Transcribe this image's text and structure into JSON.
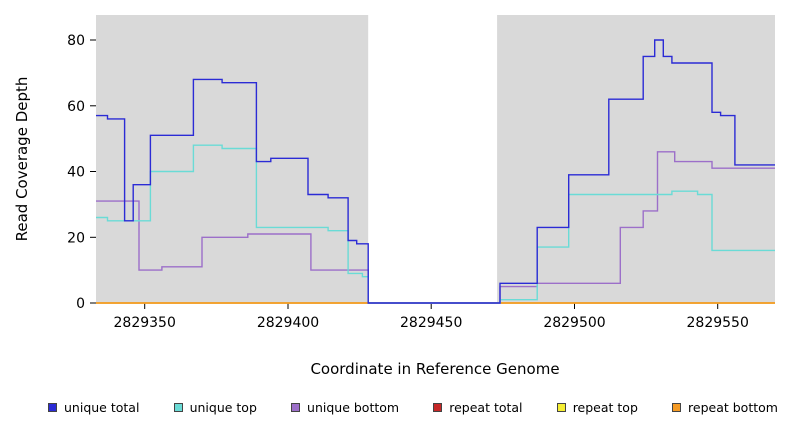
{
  "figure": {
    "background": "#ffffff",
    "plot_background": "#d9d9d9",
    "gap_band_color": "#ffffff"
  },
  "chart_data": {
    "type": "line",
    "step": true,
    "title": "",
    "xlabel": "Coordinate in Reference Genome",
    "ylabel": "Read Coverage Depth",
    "xlim": [
      2829333,
      2829570
    ],
    "ylim": [
      0,
      87
    ],
    "x_ticks": [
      2829350,
      2829400,
      2829450,
      2829500,
      2829550
    ],
    "y_ticks": [
      0,
      20,
      40,
      60,
      80
    ],
    "grid": false,
    "legend_position": "bottom",
    "gap_region": {
      "start": 2829428,
      "end": 2829473
    },
    "series": [
      {
        "name": "unique total",
        "color": "#2b2bd5",
        "points": [
          [
            2829333,
            57
          ],
          [
            2829337,
            56
          ],
          [
            2829343,
            25
          ],
          [
            2829346,
            36
          ],
          [
            2829352,
            51
          ],
          [
            2829367,
            68
          ],
          [
            2829377,
            67
          ],
          [
            2829389,
            43
          ],
          [
            2829394,
            44
          ],
          [
            2829407,
            33
          ],
          [
            2829414,
            32
          ],
          [
            2829421,
            19
          ],
          [
            2829424,
            18
          ],
          [
            2829428,
            0
          ],
          [
            2829474,
            6
          ],
          [
            2829487,
            23
          ],
          [
            2829498,
            39
          ],
          [
            2829512,
            62
          ],
          [
            2829524,
            75
          ],
          [
            2829528,
            80
          ],
          [
            2829531,
            75
          ],
          [
            2829534,
            73
          ],
          [
            2829548,
            58
          ],
          [
            2829551,
            57
          ],
          [
            2829556,
            42
          ]
        ]
      },
      {
        "name": "unique top",
        "color": "#6adbd6",
        "points": [
          [
            2829333,
            26
          ],
          [
            2829337,
            25
          ],
          [
            2829352,
            40
          ],
          [
            2829367,
            48
          ],
          [
            2829377,
            47
          ],
          [
            2829389,
            23
          ],
          [
            2829414,
            22
          ],
          [
            2829421,
            9
          ],
          [
            2829426,
            8
          ],
          [
            2829428,
            0
          ],
          [
            2829474,
            1
          ],
          [
            2829487,
            17
          ],
          [
            2829498,
            33
          ],
          [
            2829534,
            34
          ],
          [
            2829543,
            33
          ],
          [
            2829548,
            16
          ]
        ]
      },
      {
        "name": "unique bottom",
        "color": "#9c6fc9",
        "points": [
          [
            2829333,
            31
          ],
          [
            2829348,
            10
          ],
          [
            2829356,
            11
          ],
          [
            2829370,
            20
          ],
          [
            2829386,
            21
          ],
          [
            2829408,
            10
          ],
          [
            2829428,
            0
          ],
          [
            2829474,
            5
          ],
          [
            2829487,
            6
          ],
          [
            2829516,
            23
          ],
          [
            2829524,
            28
          ],
          [
            2829529,
            46
          ],
          [
            2829535,
            43
          ],
          [
            2829548,
            41
          ]
        ]
      },
      {
        "name": "repeat total",
        "color": "#c62828",
        "points": [
          [
            2829333,
            0
          ]
        ]
      },
      {
        "name": "repeat top",
        "color": "#f5ee33",
        "points": [
          [
            2829333,
            0
          ]
        ]
      },
      {
        "name": "repeat bottom",
        "color": "#f59b25",
        "points": [
          [
            2829333,
            0
          ]
        ]
      }
    ]
  }
}
